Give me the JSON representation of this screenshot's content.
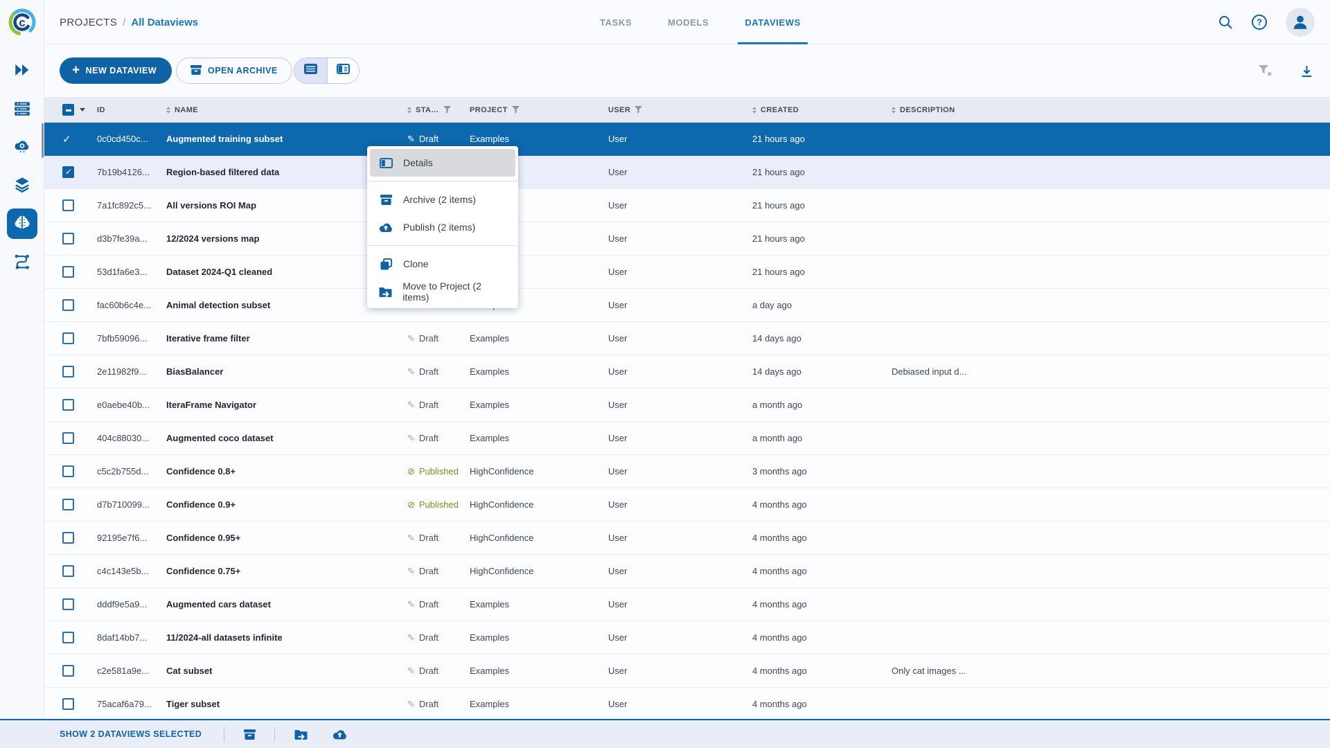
{
  "colors": {
    "primary_blue": "#0f63a5",
    "selected_row_bg": "#0d68ad",
    "link_blue": "#1b75bc",
    "published_olive": "#7f8c1f",
    "table_header_bg": "#e7eaf3",
    "checked_row_bg": "#e9eefa",
    "footer_bg": "#e8edf8"
  },
  "sidebar": {
    "items": [
      {
        "icon": "projects-icon",
        "active": false
      },
      {
        "icon": "queues-icon",
        "active": false
      },
      {
        "icon": "workers-icon",
        "active": false
      },
      {
        "icon": "datasets-icon",
        "active": false
      },
      {
        "icon": "hyperdatasets-icon",
        "active": true
      },
      {
        "icon": "pipelines-icon",
        "active": false
      }
    ]
  },
  "header": {
    "breadcrumb": {
      "root": "PROJECTS",
      "separator": "/",
      "current": "All Dataviews"
    },
    "tabs": [
      {
        "label": "TASKS",
        "active": false
      },
      {
        "label": "MODELS",
        "active": false
      },
      {
        "label": "DATAVIEWS",
        "active": true
      }
    ]
  },
  "toolbar": {
    "new_dataview": "NEW DATAVIEW",
    "open_archive": "OPEN ARCHIVE"
  },
  "table": {
    "headers": {
      "id": "ID",
      "name": "NAME",
      "status": "STA…",
      "project": "PROJECT",
      "user": "USER",
      "created": "CREATED",
      "description": "DESCRIPTION"
    },
    "rows": [
      {
        "id": "0c0cd450c...",
        "name": "Augmented training subset",
        "status": "Draft",
        "project": "Examples",
        "user": "User",
        "created": "21 hours ago",
        "description": "",
        "state": "selected"
      },
      {
        "id": "7b19b4126...",
        "name": "Region-based filtered data",
        "status": "",
        "project": "",
        "user": "User",
        "created": "21 hours ago",
        "description": "",
        "state": "checked"
      },
      {
        "id": "7a1fc892c5...",
        "name": "All versions ROI Map",
        "status": "",
        "project": "",
        "user": "User",
        "created": "21 hours ago",
        "description": "",
        "state": ""
      },
      {
        "id": "d3b7fe39a...",
        "name": "12/2024 versions map",
        "status": "",
        "project": "",
        "user": "User",
        "created": "21 hours ago",
        "description": "",
        "state": ""
      },
      {
        "id": "53d1fa6e3...",
        "name": "Dataset 2024-Q1 cleaned",
        "status": "",
        "project": "",
        "user": "User",
        "created": "21 hours ago",
        "description": "",
        "state": ""
      },
      {
        "id": "fac60b6c4e...",
        "name": "Animal detection subset",
        "status": "Draft",
        "project": "Examples",
        "user": "User",
        "created": "a day ago",
        "description": "",
        "state": ""
      },
      {
        "id": "7bfb59096...",
        "name": "Iterative frame filter",
        "status": "Draft",
        "project": "Examples",
        "user": "User",
        "created": "14 days ago",
        "description": "",
        "state": ""
      },
      {
        "id": "2e11982f9...",
        "name": "BiasBalancer",
        "status": "Draft",
        "project": "Examples",
        "user": "User",
        "created": "14 days ago",
        "description": "Debiased input d...",
        "state": ""
      },
      {
        "id": "e0aebe40b...",
        "name": "IteraFrame Navigator",
        "status": "Draft",
        "project": "Examples",
        "user": "User",
        "created": "a month ago",
        "description": "",
        "state": ""
      },
      {
        "id": "404c88030...",
        "name": "Augmented coco dataset",
        "status": "Draft",
        "project": "Examples",
        "user": "User",
        "created": "a month ago",
        "description": "",
        "state": ""
      },
      {
        "id": "c5c2b755d...",
        "name": "Confidence 0.8+",
        "status": "Published",
        "project": "HighConfidence",
        "user": "User",
        "created": "3 months ago",
        "description": "",
        "state": ""
      },
      {
        "id": "d7b710099...",
        "name": "Confidence 0.9+",
        "status": "Published",
        "project": "HighConfidence",
        "user": "User",
        "created": "4 months ago",
        "description": "",
        "state": ""
      },
      {
        "id": "92195e7f6...",
        "name": "Confidence 0.95+",
        "status": "Draft",
        "project": "HighConfidence",
        "user": "User",
        "created": "4 months ago",
        "description": "",
        "state": ""
      },
      {
        "id": "c4c143e5b...",
        "name": "Confidence 0.75+",
        "status": "Draft",
        "project": "HighConfidence",
        "user": "User",
        "created": "4 months ago",
        "description": "",
        "state": ""
      },
      {
        "id": "dddf9e5a9...",
        "name": "Augmented cars dataset",
        "status": "Draft",
        "project": "Examples",
        "user": "User",
        "created": "4 months ago",
        "description": "",
        "state": ""
      },
      {
        "id": "8daf14bb7...",
        "name": "11/2024-all datasets infinite",
        "status": "Draft",
        "project": "Examples",
        "user": "User",
        "created": "4 months ago",
        "description": "",
        "state": ""
      },
      {
        "id": "c2e581a9e...",
        "name": "Cat subset",
        "status": "Draft",
        "project": "Examples",
        "user": "User",
        "created": "4 months ago",
        "description": "Only cat images ...",
        "state": ""
      },
      {
        "id": "75acaf6a79...",
        "name": "Tiger subset",
        "status": "Draft",
        "project": "Examples",
        "user": "User",
        "created": "4 months ago",
        "description": "",
        "state": ""
      }
    ]
  },
  "context_menu": {
    "items": [
      {
        "label": "Details",
        "icon": "details-icon",
        "highlighted": true
      },
      {
        "divider": true
      },
      {
        "label": "Archive (2 items)",
        "icon": "archive-icon"
      },
      {
        "label": "Publish (2 items)",
        "icon": "publish-icon"
      },
      {
        "divider": true
      },
      {
        "label": "Clone",
        "icon": "clone-icon"
      },
      {
        "label": "Move to Project (2 items)",
        "icon": "move-icon"
      }
    ]
  },
  "footer": {
    "selection_label": "SHOW 2 DATAVIEWS SELECTED"
  }
}
